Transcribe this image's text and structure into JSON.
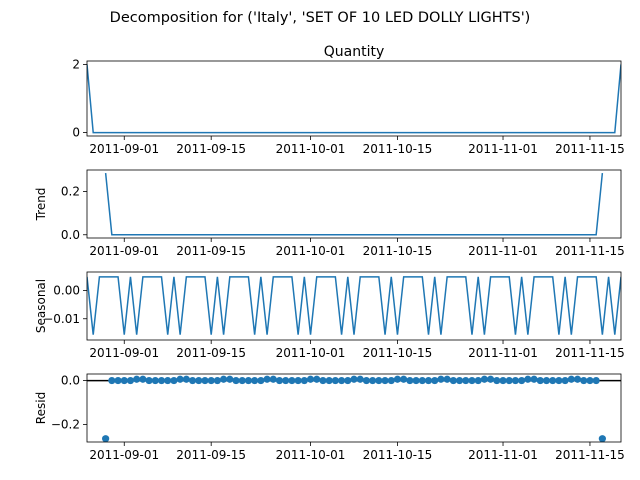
{
  "suptitle": "Decomposition for ('Italy', 'SET OF 10 LED DOLLY LIGHTS')",
  "x_tick_labels": [
    "2011-09-01",
    "2011-09-15",
    "2011-10-01",
    "2011-10-15",
    "2011-11-01",
    "2011-11-15"
  ],
  "colors": {
    "line": "#1f77b4",
    "axes": "#000000",
    "background": "#ffffff"
  },
  "chart_data": [
    {
      "type": "line",
      "title": "Quantity",
      "ylabel": "",
      "x_start": "2011-08-26",
      "x_end": "2011-11-20",
      "ylim": [
        -0.1,
        2.1
      ],
      "y_ticks": [
        0,
        2
      ],
      "y_tick_labels": [
        "0",
        "2"
      ],
      "points": [
        [
          "2011-08-26",
          2
        ],
        [
          "2011-08-27",
          0
        ],
        [
          "2011-11-19",
          0
        ],
        [
          "2011-11-20",
          2
        ]
      ]
    },
    {
      "type": "line",
      "title": "",
      "ylabel": "Trend",
      "x_start": "2011-08-26",
      "x_end": "2011-11-20",
      "ylim": [
        -0.015,
        0.3
      ],
      "y_ticks": [
        0.0,
        0.2
      ],
      "y_tick_labels": [
        "0.0",
        "0.2"
      ],
      "points": [
        [
          "2011-08-29",
          0.286
        ],
        [
          "2011-08-30",
          0
        ],
        [
          "2011-11-16",
          0
        ],
        [
          "2011-11-17",
          0.286
        ]
      ]
    },
    {
      "type": "line",
      "title": "",
      "ylabel": "Seasonal",
      "x_start": "2011-08-26",
      "x_end": "2011-11-20",
      "ylim": [
        -0.0175,
        0.0065
      ],
      "y_ticks": [
        0.0,
        -0.01
      ],
      "y_tick_labels": [
        "0.00",
        "−0.01"
      ],
      "period": 7,
      "pattern": [
        0.0048,
        -0.0156,
        0.0048,
        0.0048,
        0.0048,
        0.0048,
        -0.0156
      ]
    },
    {
      "type": "scatter",
      "title": "",
      "ylabel": "Resid",
      "x_start": "2011-08-26",
      "x_end": "2011-11-20",
      "ylim": [
        -0.28,
        0.03
      ],
      "y_ticks": [
        0.0,
        -0.2
      ],
      "y_tick_labels": [
        "0.0",
        "−0.2"
      ],
      "zero_line": true,
      "first_point": [
        "2011-08-29",
        -0.265
      ],
      "last_point": [
        "2011-11-17",
        -0.265
      ],
      "middle_range": [
        "2011-08-30",
        "2011-11-16"
      ],
      "middle_pattern": [
        0.0,
        0.0,
        0.0,
        0.0,
        0.006,
        0.006,
        0.0
      ]
    }
  ]
}
